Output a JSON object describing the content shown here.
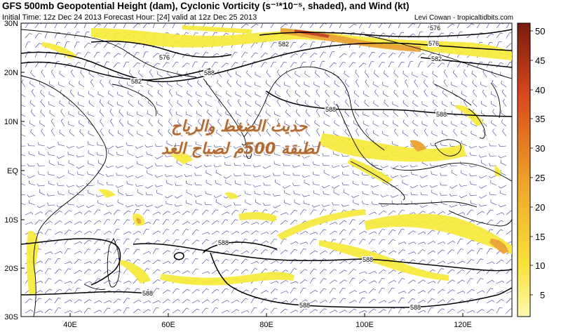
{
  "header": {
    "title": "GFS 500mb Geopotential Height (dam), Cyclonic Vorticity (s⁻¹*10⁻⁵, shaded), and Wind (kt)",
    "init_info": "Initial Time: 12z Dec 24 2013 Forecast Hour: [24] valid at 12z Dec 25 2013",
    "credit": "Levi Cowan - tropicaltidbits.com"
  },
  "map": {
    "lat_labels": [
      "30N",
      "20N",
      "10N",
      "EQ",
      "10S",
      "20S",
      "30S"
    ],
    "lon_labels": [
      "40E",
      "60E",
      "80E",
      "100E",
      "120E"
    ],
    "contour_labels": [
      "576",
      "576",
      "576",
      "582",
      "582",
      "582",
      "588",
      "588",
      "588",
      "588",
      "588",
      "588",
      "588",
      "588"
    ],
    "overlay_text_line1": "حديث الضغط والرياح",
    "overlay_text_line2": "لطبقة 500م لصباح الغد"
  },
  "colorbar": {
    "ticks": [
      "50",
      "45",
      "40",
      "35",
      "30",
      "25",
      "20",
      "15",
      "10",
      "5"
    ]
  },
  "colors": {
    "vort_low": "#f7ea3a",
    "vort_mid": "#e9a02a",
    "vort_high": "#c23a1a",
    "contour": "#000000",
    "barb": "#3b3b8f"
  }
}
